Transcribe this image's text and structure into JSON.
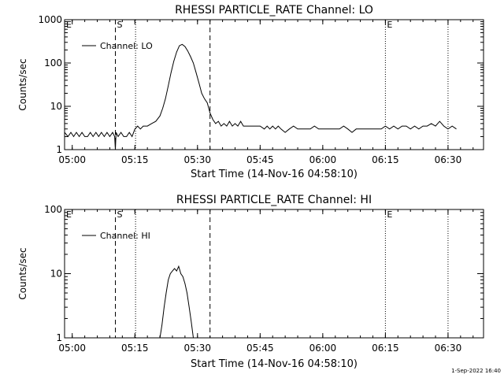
{
  "footer": {
    "timestamp": "1-Sep-2022 16:40"
  },
  "chart_data": [
    {
      "type": "line",
      "title": "RHESSI PARTICLE_RATE Channel: LO",
      "xlabel": "Start Time (14-Nov-16 04:58:10)",
      "ylabel": "Counts/sec",
      "yscale": "log",
      "xlim": [
        "04:58:10",
        "06:38:30"
      ],
      "ylim": [
        1,
        1000
      ],
      "x_ticks": [
        "05:00",
        "05:15",
        "05:30",
        "05:45",
        "06:00",
        "06:15",
        "06:30"
      ],
      "y_ticks": [
        "1",
        "10",
        "100",
        "1000"
      ],
      "legend": {
        "position": "top-left",
        "entries": [
          "Channel: LO"
        ]
      },
      "markers": [
        {
          "time": "04:58:10",
          "label": "E",
          "style": "none"
        },
        {
          "time": "05:10:20",
          "label": "S",
          "style": "dashed"
        },
        {
          "time": "05:15:10",
          "label": "",
          "style": "dotted"
        },
        {
          "time": "05:33:00",
          "label": "",
          "style": "dashed"
        },
        {
          "time": "06:15:00",
          "label": "E",
          "style": "dotted"
        },
        {
          "time": "06:30:00",
          "label": "",
          "style": "dotted"
        }
      ],
      "series": [
        {
          "name": "Channel: LO",
          "x": [
            "04:58:10",
            "04:59:00",
            "04:59:40",
            "05:00:20",
            "05:01:00",
            "05:01:40",
            "05:02:20",
            "05:03:00",
            "05:03:40",
            "05:04:20",
            "05:05:00",
            "05:05:40",
            "05:06:20",
            "05:07:00",
            "05:07:40",
            "05:08:20",
            "05:09:00",
            "05:09:40",
            "05:10:10",
            "05:10:20",
            "05:10:30",
            "05:11:00",
            "05:11:40",
            "05:12:20",
            "05:13:00",
            "05:13:40",
            "05:14:20",
            "05:15:00",
            "05:15:40",
            "05:16:20",
            "05:17:00",
            "05:18:00",
            "05:19:00",
            "05:20:00",
            "05:21:00",
            "05:21:40",
            "05:22:20",
            "05:23:00",
            "05:23:40",
            "05:24:20",
            "05:25:00",
            "05:25:40",
            "05:26:20",
            "05:27:00",
            "05:27:40",
            "05:28:20",
            "05:29:00",
            "05:29:40",
            "05:30:20",
            "05:31:00",
            "05:31:40",
            "05:32:20",
            "05:33:00",
            "05:33:40",
            "05:34:20",
            "05:35:00",
            "05:35:40",
            "05:36:20",
            "05:37:00",
            "05:37:40",
            "05:38:20",
            "05:39:00",
            "05:39:40",
            "05:40:20",
            "05:41:00",
            "05:42:00",
            "05:43:00",
            "05:44:00",
            "05:45:00",
            "05:46:00",
            "05:46:40",
            "05:47:20",
            "05:48:00",
            "05:48:40",
            "05:49:20",
            "05:50:00",
            "05:51:00",
            "05:52:00",
            "05:53:00",
            "05:54:00",
            "05:55:00",
            "05:56:00",
            "05:57:00",
            "05:58:00",
            "05:59:00",
            "06:00:00",
            "06:01:00",
            "06:02:00",
            "06:03:00",
            "06:04:00",
            "06:05:00",
            "06:06:00",
            "06:07:00",
            "06:08:00",
            "06:09:00",
            "06:10:00",
            "06:11:00",
            "06:12:00",
            "06:13:00",
            "06:14:00",
            "06:15:00",
            "06:16:00",
            "06:17:00",
            "06:18:00",
            "06:19:00",
            "06:20:00",
            "06:21:00",
            "06:22:00",
            "06:23:00",
            "06:24:00",
            "06:25:00",
            "06:26:00",
            "06:27:00",
            "06:28:00",
            "06:29:00",
            "06:30:00",
            "06:31:00",
            "06:32:00"
          ],
          "values": [
            2.5,
            2,
            2.5,
            2,
            2.5,
            2,
            2.5,
            2,
            2,
            2.5,
            2,
            2.5,
            2,
            2.5,
            2,
            2.5,
            2,
            2.5,
            2,
            1,
            2.5,
            2,
            2.5,
            2,
            2,
            2.5,
            2,
            3,
            3.5,
            3,
            3.5,
            3.5,
            4,
            4.5,
            6,
            9,
            15,
            30,
            60,
            110,
            180,
            250,
            270,
            240,
            190,
            140,
            100,
            60,
            35,
            20,
            15,
            12,
            7,
            5,
            4,
            4.5,
            3.5,
            4,
            3.5,
            4.5,
            3.5,
            4,
            3.5,
            4.5,
            3.5,
            3.5,
            3.5,
            3.5,
            3.5,
            3,
            3.5,
            3,
            3.5,
            3,
            3.5,
            3,
            2.5,
            3,
            3.5,
            3,
            3,
            3,
            3,
            3.5,
            3,
            3,
            3,
            3,
            3,
            3,
            3.5,
            3,
            2.5,
            3,
            3,
            3,
            3,
            3,
            3,
            3,
            3.5,
            3,
            3.5,
            3,
            3.5,
            3.5,
            3,
            3.5,
            3,
            3.5,
            3.5,
            4,
            3.5,
            4.5,
            3.5,
            3,
            3.5,
            3
          ]
        }
      ]
    },
    {
      "type": "line",
      "title": "RHESSI PARTICLE_RATE Channel: HI",
      "xlabel": "Start Time (14-Nov-16 04:58:10)",
      "ylabel": "Counts/sec",
      "yscale": "log",
      "xlim": [
        "04:58:10",
        "06:38:30"
      ],
      "ylim": [
        1,
        100
      ],
      "x_ticks": [
        "05:00",
        "05:15",
        "05:30",
        "05:45",
        "06:00",
        "06:15",
        "06:30"
      ],
      "y_ticks": [
        "1",
        "10",
        "100"
      ],
      "legend": {
        "position": "top-left",
        "entries": [
          "Channel: HI"
        ]
      },
      "markers": [
        {
          "time": "04:58:10",
          "label": "E",
          "style": "none"
        },
        {
          "time": "05:10:20",
          "label": "S",
          "style": "dashed"
        },
        {
          "time": "05:15:10",
          "label": "",
          "style": "dotted"
        },
        {
          "time": "05:33:00",
          "label": "",
          "style": "dashed"
        },
        {
          "time": "06:15:00",
          "label": "E",
          "style": "dotted"
        },
        {
          "time": "06:30:00",
          "label": "",
          "style": "dotted"
        }
      ],
      "series": [
        {
          "name": "Channel: HI",
          "x": [
            "05:21:00",
            "05:21:30",
            "05:22:00",
            "05:22:30",
            "05:23:00",
            "05:23:30",
            "05:24:00",
            "05:24:30",
            "05:25:00",
            "05:25:30",
            "05:26:00",
            "05:26:30",
            "05:27:00",
            "05:27:30",
            "05:28:00",
            "05:28:30",
            "05:29:00"
          ],
          "values": [
            1,
            1.6,
            3,
            5,
            8,
            10,
            11,
            12,
            11,
            13,
            10,
            9,
            7,
            5,
            3,
            1.8,
            1
          ]
        }
      ]
    }
  ]
}
